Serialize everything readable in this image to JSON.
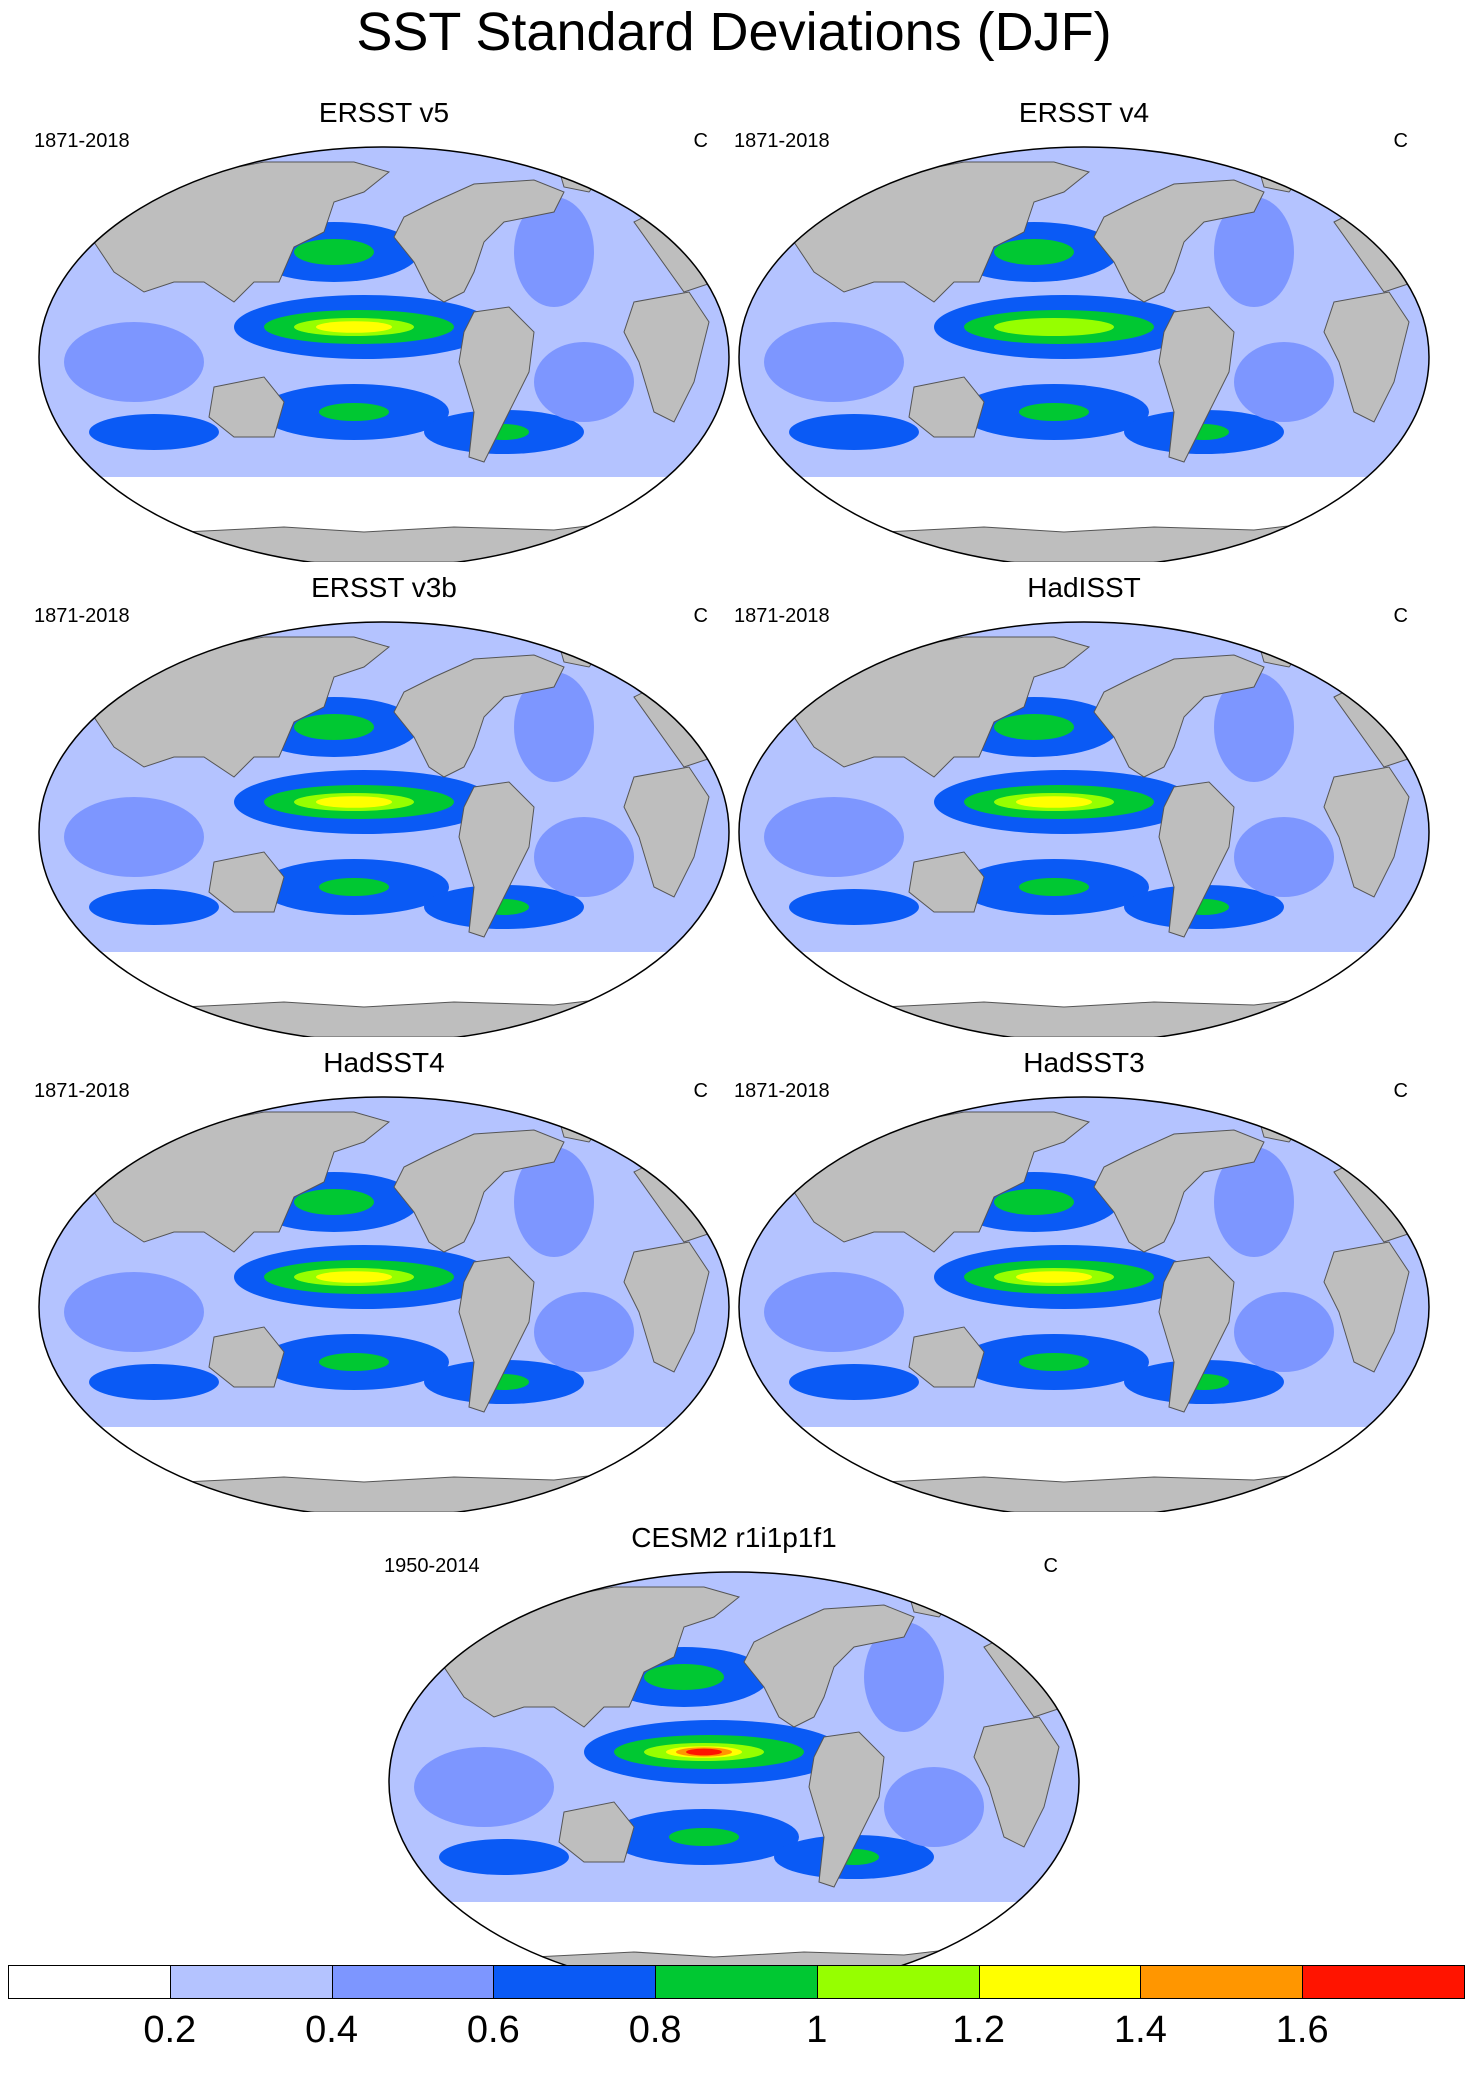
{
  "title": "SST Standard Deviations (DJF)",
  "panels": [
    {
      "title": "ERSST v5",
      "period": "1871-2018",
      "unit": "C",
      "peak": "yellow"
    },
    {
      "title": "ERSST v4",
      "period": "1871-2018",
      "unit": "C",
      "peak": "lime"
    },
    {
      "title": "ERSST v3b",
      "period": "1871-2018",
      "unit": "C",
      "peak": "yellow"
    },
    {
      "title": "HadISST",
      "period": "1871-2018",
      "unit": "C",
      "peak": "yellow"
    },
    {
      "title": "HadSST4",
      "period": "1871-2018",
      "unit": "C",
      "peak": "yellow"
    },
    {
      "title": "HadSST3",
      "period": "1871-2018",
      "unit": "C",
      "peak": "yellow"
    },
    {
      "title": "CESM2 r1i1p1f1",
      "period": "1950-2014",
      "unit": "C",
      "peak": "red"
    }
  ],
  "colorbar": {
    "levels": [
      "0.2",
      "0.4",
      "0.6",
      "0.8",
      "1",
      "1.2",
      "1.4",
      "1.6"
    ],
    "colors": [
      "#ffffff",
      "#b4c3ff",
      "#7d96ff",
      "#0a5af5",
      "#00c832",
      "#96ff00",
      "#ffff00",
      "#ff9600",
      "#ff1400"
    ]
  },
  "land_color": "#bebebe"
}
